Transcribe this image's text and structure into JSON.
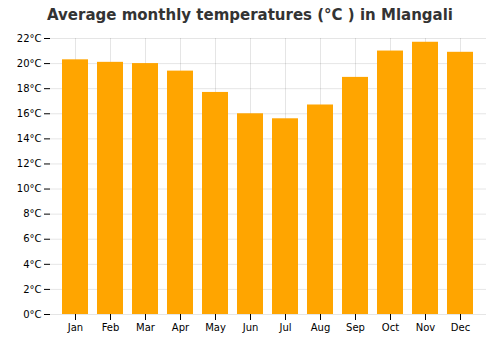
{
  "chart_data": {
    "type": "bar",
    "title": "Average monthly temperatures (°C ) in Mlangali",
    "categories": [
      "Jan",
      "Feb",
      "Mar",
      "Apr",
      "May",
      "Jun",
      "Jul",
      "Aug",
      "Sep",
      "Oct",
      "Nov",
      "Dec"
    ],
    "values": [
      20.3,
      20.1,
      20.0,
      19.4,
      17.7,
      16.0,
      15.6,
      16.7,
      18.9,
      21.0,
      21.7,
      20.9
    ],
    "color": "#FFA500",
    "ylim": [
      0,
      22
    ],
    "yticks": [
      {
        "value": 0,
        "label": "0°C"
      },
      {
        "value": 2,
        "label": "2°C"
      },
      {
        "value": 4,
        "label": "4°C"
      },
      {
        "value": 6,
        "label": "6°C"
      },
      {
        "value": 8,
        "label": "8°C"
      },
      {
        "value": 10,
        "label": "10°C"
      },
      {
        "value": 12,
        "label": "12°C"
      },
      {
        "value": 14,
        "label": "14°C"
      },
      {
        "value": 16,
        "label": "16°C"
      },
      {
        "value": 18,
        "label": "18°C"
      },
      {
        "value": 20,
        "label": "20°C"
      },
      {
        "value": 22,
        "label": "22°C"
      }
    ],
    "grid": true
  }
}
